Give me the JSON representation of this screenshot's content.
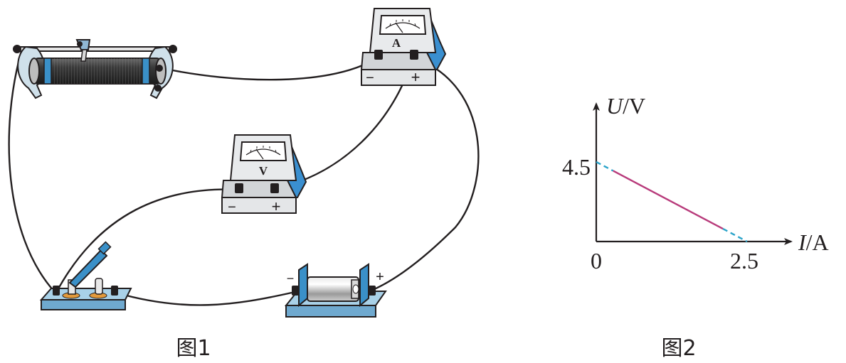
{
  "figure1": {
    "caption": "图1",
    "ammeter": {
      "letter": "A",
      "minus_sign": "−",
      "plus_sign": "+"
    },
    "voltmeter": {
      "letter": "V",
      "minus_sign": "−",
      "plus_sign": "+"
    },
    "battery": {
      "minus_sign": "−",
      "plus_sign": "+"
    }
  },
  "figure2": {
    "caption": "图2",
    "chart_data": {
      "type": "line",
      "xlabel_italic": "I",
      "xlabel_unit": "/A",
      "ylabel_italic": "U",
      "ylabel_unit": "/V",
      "origin_label": "0",
      "x_tick_label": "2.5",
      "y_tick_label": "4.5",
      "xlim": [
        0,
        2.5
      ],
      "ylim": [
        0,
        4.5
      ],
      "series": [
        {
          "style": "dashed",
          "color": "#2aa3c9",
          "x": [
            0,
            0.28
          ],
          "y": [
            4.5,
            4.0
          ]
        },
        {
          "style": "solid",
          "color": "#b83b7b",
          "x": [
            0.28,
            2.1
          ],
          "y": [
            4.0,
            0.72
          ]
        },
        {
          "style": "dashed",
          "color": "#2aa3c9",
          "x": [
            2.1,
            2.5
          ],
          "y": [
            0.72,
            0
          ]
        }
      ],
      "grid": false
    }
  }
}
